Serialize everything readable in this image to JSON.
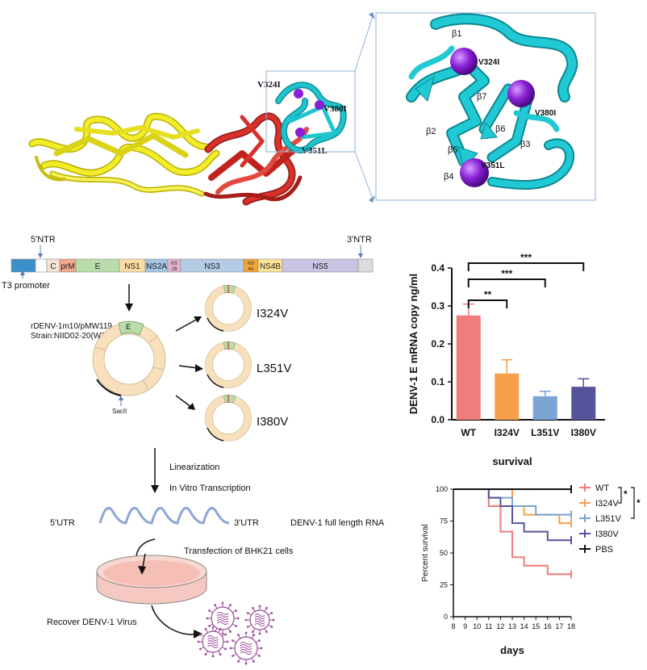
{
  "structure": {
    "mutation_labels": [
      "V324I",
      "V380I",
      "V351L"
    ],
    "zoom_labels": {
      "strands": [
        "β1",
        "β7",
        "β2",
        "β6",
        "β5",
        "β3",
        "β4"
      ],
      "mutations": [
        "V324I",
        "V380I",
        "V351L"
      ]
    },
    "colors": {
      "domain_I": "#f2ec2a",
      "domain_II": "#d8302a",
      "domain_III": "#1fc4cf",
      "sphere": "#8a1fd6"
    }
  },
  "genome": {
    "ntr5": "5'NTR",
    "ntr3": "3'NTR",
    "promoter": "T3 promoter",
    "segments": [
      {
        "label": "",
        "color": "#3d8fc9"
      },
      {
        "label": "",
        "color": "#ffffff"
      },
      {
        "label": "C",
        "color": "#f4e4d4"
      },
      {
        "label": "prM",
        "color": "#f2a68c"
      },
      {
        "label": "E",
        "color": "#b8dcaa"
      },
      {
        "label": "NS1",
        "color": "#fcdca4"
      },
      {
        "label": "NS2A",
        "color": "#a4c4e4"
      },
      {
        "label": "NS 2B",
        "color": "#e4b4cc"
      },
      {
        "label": "NS3",
        "color": "#b4cce4"
      },
      {
        "label": "NS 4A",
        "color": "#f4a434"
      },
      {
        "label": "NS4B",
        "color": "#fce494"
      },
      {
        "label": "NS5",
        "color": "#c8c4e4"
      },
      {
        "label": "",
        "color": "#dcdcdc"
      }
    ]
  },
  "cloning": {
    "plasmid_name": "rDENV-1m10/pMW119",
    "strain": "Strain:NIID02-20(WT)",
    "e_label": "E",
    "site": "SacII",
    "mutants": [
      "I324V",
      "L351V",
      "I380V"
    ],
    "step1": "Linearization",
    "step2": "In Vitro Transcription",
    "utr5": "5'UTR",
    "utr3": "3'UTR",
    "rna_label": "DENV-1 full length RNA",
    "transfection": "Transfection of BHK21 cells",
    "recover": "Recover DENV-1 Virus"
  },
  "chart_data": [
    {
      "type": "bar",
      "ylabel": "DENV-1 E mRNA copy ng/ml",
      "categories": [
        "WT",
        "I324V",
        "L351V",
        "I380V"
      ],
      "values": [
        0.275,
        0.122,
        0.062,
        0.087
      ],
      "errors": [
        0.03,
        0.036,
        0.013,
        0.021
      ],
      "colors": [
        "#f07c7c",
        "#f5a04b",
        "#7ba3d3",
        "#55549a"
      ],
      "ylim": [
        0,
        0.4
      ],
      "yticks": [
        "0.0",
        "0.1",
        "0.2",
        "0.3",
        "0.4"
      ],
      "significance": [
        {
          "from": "WT",
          "to": "I324V",
          "label": "**"
        },
        {
          "from": "WT",
          "to": "L351V",
          "label": "***"
        },
        {
          "from": "WT",
          "to": "I380V",
          "label": "***"
        }
      ]
    },
    {
      "type": "line",
      "title": "survival",
      "xlabel": "days",
      "ylabel": "Percent survival",
      "xlim": [
        8,
        18
      ],
      "ylim": [
        0,
        100
      ],
      "xticks": [
        "8",
        "9",
        "10",
        "11",
        "12",
        "13",
        "14",
        "15",
        "16",
        "17",
        "18"
      ],
      "yticks": [
        "0",
        "25",
        "50",
        "75",
        "100"
      ],
      "series": [
        {
          "name": "WT",
          "color": "#ef7c7c",
          "steps": [
            [
              8,
              100
            ],
            [
              11,
              86.7
            ],
            [
              12,
              66.7
            ],
            [
              13,
              46.7
            ],
            [
              14,
              40
            ],
            [
              16,
              33.3
            ],
            [
              18,
              33.3
            ]
          ]
        },
        {
          "name": "I324V",
          "color": "#f5a04b",
          "steps": [
            [
              8,
              100
            ],
            [
              13,
              86.7
            ],
            [
              14,
              80
            ],
            [
              17,
              73.3
            ],
            [
              18,
              73.3
            ]
          ]
        },
        {
          "name": "L351V",
          "color": "#7ba3d3",
          "steps": [
            [
              8,
              100
            ],
            [
              11,
              93.3
            ],
            [
              13,
              86.7
            ],
            [
              15,
              80
            ],
            [
              18,
              80
            ]
          ]
        },
        {
          "name": "I380V",
          "color": "#55549a",
          "steps": [
            [
              8,
              100
            ],
            [
              11,
              93.3
            ],
            [
              12,
              86.7
            ],
            [
              13,
              73.3
            ],
            [
              14,
              66.7
            ],
            [
              15,
              66.7
            ],
            [
              16,
              60
            ],
            [
              18,
              60
            ]
          ]
        },
        {
          "name": "PBS",
          "color": "#111111",
          "steps": [
            [
              8,
              100
            ],
            [
              18,
              100
            ]
          ]
        }
      ],
      "significance": [
        "*",
        "*"
      ]
    }
  ]
}
